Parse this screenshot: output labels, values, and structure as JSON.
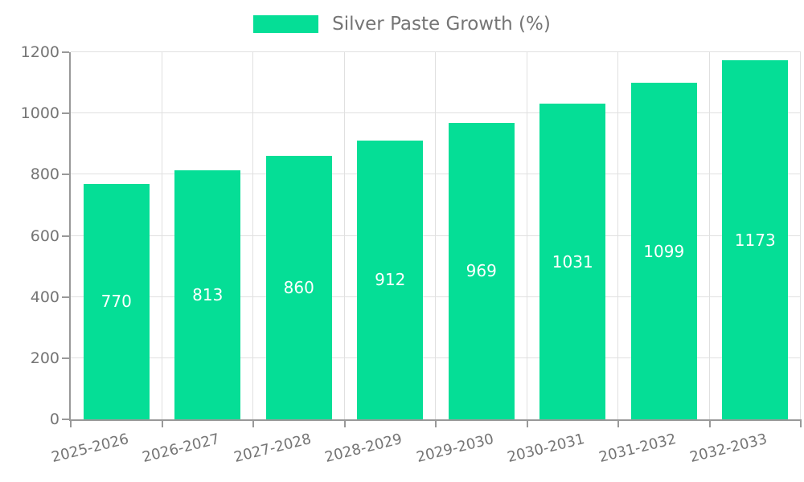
{
  "legend": {
    "label": "Silver Paste Growth (%)"
  },
  "chart_data": {
    "type": "bar",
    "title": "Silver Paste Growth (%)",
    "series_name": "Silver Paste Growth (%)",
    "categories": [
      "2025-2026",
      "2026-2027",
      "2027-2028",
      "2028-2029",
      "2029-2030",
      "2030-2031",
      "2031-2032",
      "2032-2033"
    ],
    "values": [
      770,
      813,
      860,
      912,
      969,
      1031,
      1099,
      1173
    ],
    "xlabel": "",
    "ylabel": "",
    "ylim": [
      0,
      1200
    ],
    "yticks": [
      0,
      200,
      400,
      600,
      800,
      1000,
      1200
    ],
    "grid": true,
    "legend_position": "top-center",
    "value_labels_position": "inside-center",
    "x_label_rotation_deg": -14,
    "colors": {
      "bar": "#05de96",
      "axis": "#999999",
      "grid": "#e0e0e0",
      "tick_text": "#757575",
      "value_label": "#ffffff",
      "background": "#ffffff"
    }
  }
}
